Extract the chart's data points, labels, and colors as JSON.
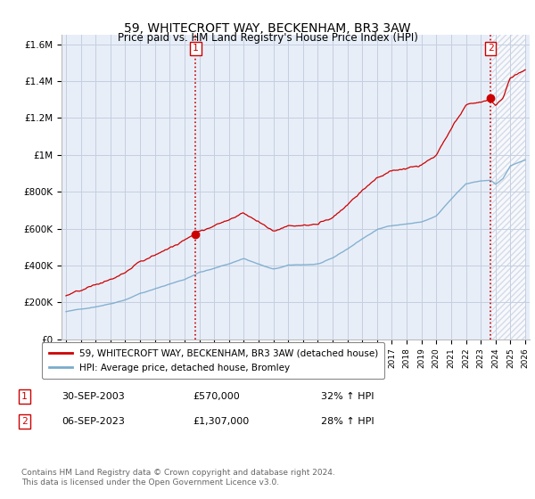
{
  "title": "59, WHITECROFT WAY, BECKENHAM, BR3 3AW",
  "subtitle": "Price paid vs. HM Land Registry's House Price Index (HPI)",
  "ylabel_ticks": [
    "£0",
    "£200K",
    "£400K",
    "£600K",
    "£800K",
    "£1M",
    "£1.2M",
    "£1.4M",
    "£1.6M"
  ],
  "ylabel_values": [
    0,
    200000,
    400000,
    600000,
    800000,
    1000000,
    1200000,
    1400000,
    1600000
  ],
  "ylim": [
    0,
    1650000
  ],
  "x_start_year": 1995,
  "x_end_year": 2026,
  "sale1_year": 2003.75,
  "sale1_price": 570000,
  "sale1_date": "30-SEP-2003",
  "sale1_hpi": "32% ↑ HPI",
  "sale2_year": 2023.67,
  "sale2_price": 1307000,
  "sale2_date": "06-SEP-2023",
  "sale2_hpi": "28% ↑ HPI",
  "legend_line1": "59, WHITECROFT WAY, BECKENHAM, BR3 3AW (detached house)",
  "legend_line2": "HPI: Average price, detached house, Bromley",
  "footer": "Contains HM Land Registry data © Crown copyright and database right 2024.\nThis data is licensed under the Open Government Licence v3.0.",
  "line_color_red": "#cc0000",
  "line_color_blue": "#7aabcc",
  "bg_color": "#e8eef8",
  "grid_color": "#c4cfe0",
  "vline_color": "#cc0000",
  "shaded_color": "#c4cfe0"
}
